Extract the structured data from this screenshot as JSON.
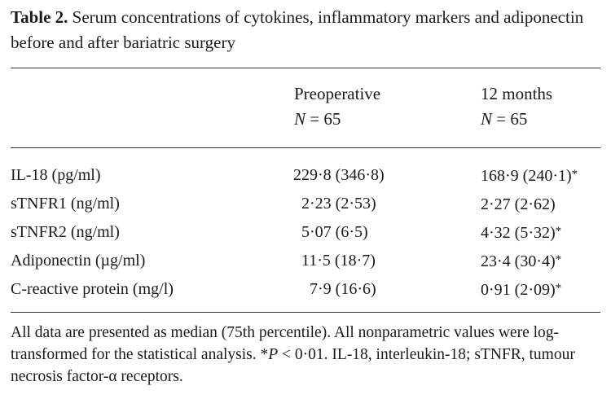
{
  "caption": {
    "label": "Table 2.",
    "text": "Serum concentrations of cytokines, inflammatory markers and adiponectin before and after bariatric surgery"
  },
  "columns": [
    {
      "title": "Preoperative",
      "n_label": "N",
      "n_value": "= 65"
    },
    {
      "title": "12 months",
      "n_label": "N",
      "n_value": "= 65"
    }
  ],
  "rows": [
    {
      "name": "IL-18 (pg/ml)",
      "pre": "229·8 (346·8)",
      "post": "168·9 (240·1)",
      "post_mark": "*"
    },
    {
      "name": "sTNFR1 (ng/ml)",
      "pre": "2·23 (2·53)",
      "post": "2·27 (2·62)",
      "post_mark": ""
    },
    {
      "name": "sTNFR2 (ng/ml)",
      "pre": "5·07 (6·5)",
      "post": "4·32 (5·32)",
      "post_mark": "*"
    },
    {
      "name": "Adiponectin (µg/ml)",
      "pre": "11·5 (18·7)",
      "post": "23·4 (30·4)",
      "post_mark": "*"
    },
    {
      "name": "C-reactive protein (mg/l)",
      "pre": "7·9 (16·6)",
      "post": "0·91 (2·09)",
      "post_mark": "*"
    }
  ],
  "footnote": {
    "part1": "All data are presented as median (75th percentile). All nonparametric values were log-transformed for the statistical analysis. *",
    "p_symbol": "P",
    "part2": " < 0·01. IL-18, interleukin-18; sTNFR, tumour necrosis factor-α receptors."
  }
}
